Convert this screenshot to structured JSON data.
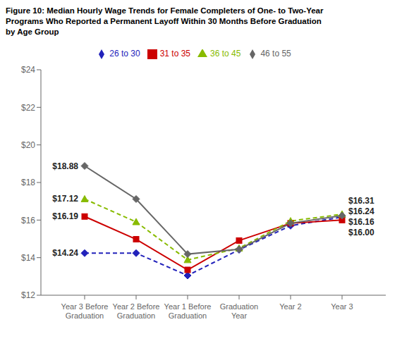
{
  "chart_data": {
    "type": "line",
    "title": "Figure 10: Median Hourly Wage Trends for Female Completers of One- to Two-Year\nPrograms Who Reported a Permanent Layoff Within 30 Months Before Graduation\nby Age Group",
    "categories": [
      "Year 3 Before\nGraduation",
      "Year 2 Before\nGraduation",
      "Year 1 Before\nGraduation",
      "Graduation\nYear",
      "Year 2",
      "Year 3"
    ],
    "series": [
      {
        "name": "26 to 30",
        "color": "#2222bb",
        "values": [
          14.24,
          14.24,
          13.05,
          14.42,
          15.7,
          16.16
        ],
        "line_style": "dashed",
        "marker": "diamond"
      },
      {
        "name": "31 to 35",
        "color": "#cc0000",
        "values": [
          16.19,
          14.98,
          13.35,
          14.91,
          15.83,
          16.0
        ],
        "line_style": "solid",
        "marker": "square"
      },
      {
        "name": "36 to 45",
        "color": "#88bb00",
        "values": [
          17.12,
          15.9,
          13.88,
          14.5,
          15.95,
          16.31
        ],
        "line_style": "dashed",
        "marker": "triangle"
      },
      {
        "name": "46 to 55",
        "color": "#666666",
        "values": [
          18.88,
          17.12,
          14.19,
          14.45,
          15.83,
          16.24
        ],
        "line_style": "solid",
        "marker": "diamond"
      }
    ],
    "ylim": [
      12,
      24
    ],
    "yticks": [
      {
        "value": 12,
        "label": "$12"
      },
      {
        "value": 14,
        "label": "$14"
      },
      {
        "value": 16,
        "label": "$16"
      },
      {
        "value": 18,
        "label": "$18"
      },
      {
        "value": 20,
        "label": "$20"
      },
      {
        "value": 22,
        "label": "$22"
      },
      {
        "value": 24,
        "label": "$24"
      }
    ],
    "grid": false,
    "legend": "top",
    "annotations": [
      {
        "text": "$18.88",
        "series": "46 to 55",
        "category": "Year 3 Before\nGraduation"
      },
      {
        "text": "$17.12",
        "series": "36 to 45",
        "category": "Year 3 Before\nGraduation"
      },
      {
        "text": "$16.19",
        "series": "31 to 35",
        "category": "Year 3 Before\nGraduation"
      },
      {
        "text": "$14.24",
        "series": "26 to 30",
        "category": "Year 3 Before\nGraduation"
      },
      {
        "text": "$16.31",
        "series": "36 to 45",
        "category": "Year 3"
      },
      {
        "text": "$16.24",
        "series": "46 to 55",
        "category": "Year 3"
      },
      {
        "text": "$16.16",
        "series": "26 to 30",
        "category": "Year 3"
      },
      {
        "text": "$16.00",
        "series": "31 to 35",
        "category": "Year 3"
      }
    ]
  }
}
